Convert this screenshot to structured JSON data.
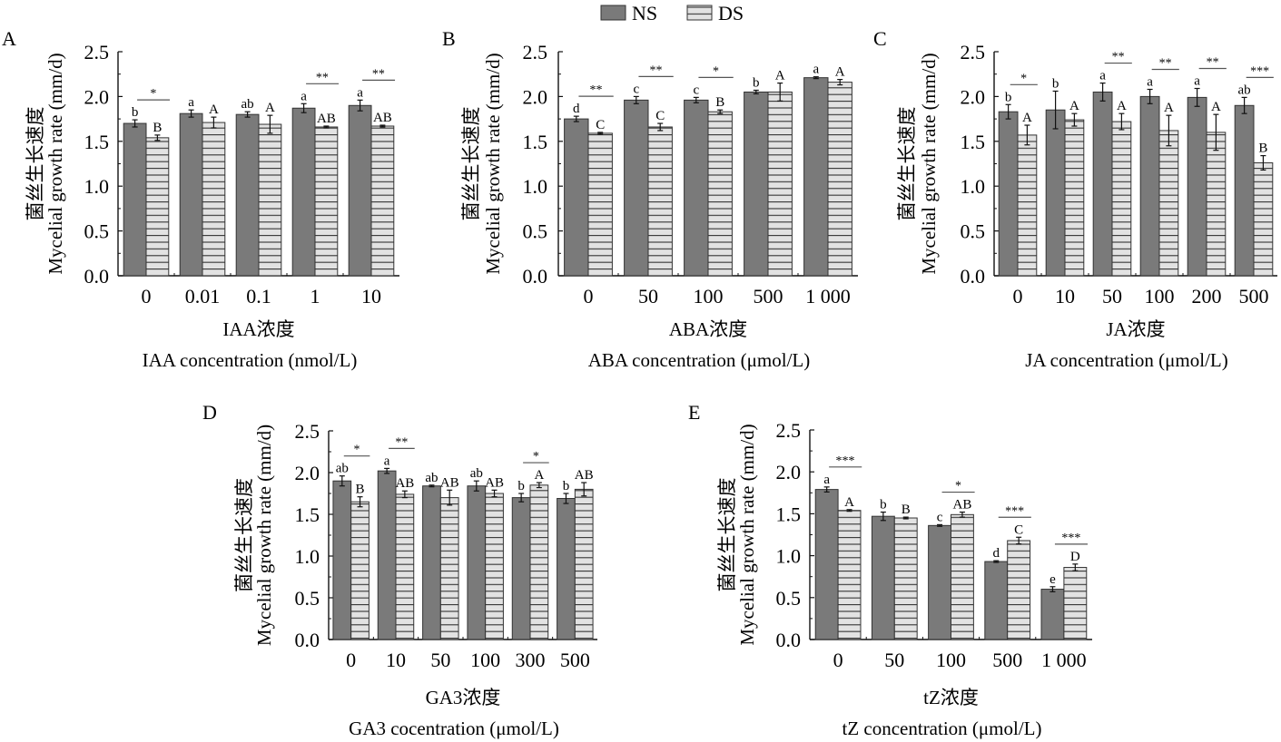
{
  "legend": {
    "items": [
      {
        "label": "NS",
        "style": "solid",
        "color": "#7a7a7a"
      },
      {
        "label": "DS",
        "style": "hatched",
        "color": "#e2e2e2"
      }
    ]
  },
  "colors": {
    "ns_fill": "#7a7a7a",
    "ds_fill": "#e2e2e2",
    "hatch_line": "#333333",
    "axis": "#111111"
  },
  "chart_data": [
    {
      "id": "A",
      "type": "bar",
      "panel_label": "A",
      "ylabel_cn": "菌丝生长速度",
      "ylabel_en": "Mycelial growth rate (mm/d)",
      "xlabel_cn": "IAA浓度",
      "xlabel_en": "IAA concentration (nmol/L)",
      "ylim": [
        0,
        2.5
      ],
      "yticks": [
        "0.0",
        "0.5",
        "1.0",
        "1.5",
        "2.0",
        "2.5"
      ],
      "categories": [
        "0",
        "0.01",
        "0.1",
        "1",
        "10"
      ],
      "series": [
        {
          "name": "NS",
          "values": [
            1.7,
            1.81,
            1.8,
            1.87,
            1.9
          ],
          "errors": [
            0.04,
            0.04,
            0.03,
            0.05,
            0.06
          ],
          "letters": [
            "b",
            "a",
            "ab",
            "a",
            "a"
          ]
        },
        {
          "name": "DS",
          "values": [
            1.54,
            1.71,
            1.69,
            1.66,
            1.67
          ],
          "errors": [
            0.03,
            0.06,
            0.1,
            0.01,
            0.01
          ],
          "letters": [
            "B",
            "A",
            "A",
            "AB",
            "AB"
          ]
        }
      ],
      "significance": [
        "*",
        "",
        "",
        "**",
        "**"
      ]
    },
    {
      "id": "B",
      "type": "bar",
      "panel_label": "B",
      "ylabel_cn": "菌丝生长速度",
      "ylabel_en": "Mycelial growth rate (mm/d)",
      "xlabel_cn": "ABA浓度",
      "xlabel_en": "ABA concentration (μmol/L)",
      "ylim": [
        0,
        2.5
      ],
      "yticks": [
        "0.0",
        "0.5",
        "1.0",
        "1.5",
        "2.0",
        "2.5"
      ],
      "categories": [
        "0",
        "50",
        "100",
        "500",
        "1 000"
      ],
      "series": [
        {
          "name": "NS",
          "values": [
            1.75,
            1.96,
            1.96,
            2.05,
            2.21
          ],
          "errors": [
            0.03,
            0.04,
            0.03,
            0.02,
            0.01
          ],
          "letters": [
            "d",
            "c",
            "c",
            "b",
            "a"
          ]
        },
        {
          "name": "DS",
          "values": [
            1.59,
            1.66,
            1.83,
            2.05,
            2.16
          ],
          "errors": [
            0.01,
            0.04,
            0.02,
            0.1,
            0.03
          ],
          "letters": [
            "C",
            "C",
            "B",
            "A",
            "A"
          ]
        }
      ],
      "significance": [
        "**",
        "**",
        "*",
        "",
        ""
      ]
    },
    {
      "id": "C",
      "type": "bar",
      "panel_label": "C",
      "ylabel_cn": "菌丝生长速度",
      "ylabel_en": "Mycelial growth rate (mm/d)",
      "xlabel_cn": "JA浓度",
      "xlabel_en": "JA concentration (μmol/L)",
      "ylim": [
        0,
        2.5
      ],
      "yticks": [
        "0.0",
        "0.5",
        "1.0",
        "1.5",
        "2.0",
        "2.5"
      ],
      "categories": [
        "0",
        "10",
        "50",
        "100",
        "200",
        "500"
      ],
      "series": [
        {
          "name": "NS",
          "values": [
            1.83,
            1.85,
            2.05,
            2.0,
            1.99,
            1.9
          ],
          "errors": [
            0.08,
            0.21,
            0.1,
            0.08,
            0.1,
            0.09
          ],
          "letters": [
            "b",
            "b",
            "a",
            "a",
            "a",
            "ab"
          ]
        },
        {
          "name": "DS",
          "values": [
            1.57,
            1.74,
            1.72,
            1.62,
            1.6,
            1.26
          ],
          "errors": [
            0.11,
            0.07,
            0.09,
            0.17,
            0.2,
            0.08
          ],
          "letters": [
            "A",
            "A",
            "A",
            "A",
            "A",
            "B"
          ]
        }
      ],
      "significance": [
        "*",
        "",
        "**",
        "**",
        "**",
        "***"
      ]
    },
    {
      "id": "D",
      "type": "bar",
      "panel_label": "D",
      "ylabel_cn": "菌丝生长速度",
      "ylabel_en": "Mycelial growth rate (mm/d)",
      "xlabel_cn": "GA3浓度",
      "xlabel_en": "GA3 cocentration (μmol/L)",
      "ylim": [
        0,
        2.5
      ],
      "yticks": [
        "0.0",
        "0.5",
        "1.0",
        "1.5",
        "2.0",
        "2.5"
      ],
      "categories": [
        "0",
        "10",
        "50",
        "100",
        "300",
        "500"
      ],
      "series": [
        {
          "name": "NS",
          "values": [
            1.9,
            2.02,
            1.84,
            1.84,
            1.7,
            1.69
          ],
          "errors": [
            0.06,
            0.03,
            0.01,
            0.06,
            0.05,
            0.06
          ],
          "letters": [
            "ab",
            "a",
            "ab",
            "ab",
            "b",
            "b"
          ]
        },
        {
          "name": "DS",
          "values": [
            1.65,
            1.74,
            1.7,
            1.75,
            1.85,
            1.8
          ],
          "errors": [
            0.06,
            0.04,
            0.09,
            0.04,
            0.03,
            0.08
          ],
          "letters": [
            "B",
            "AB",
            "AB",
            "AB",
            "A",
            "AB"
          ]
        }
      ],
      "significance": [
        "*",
        "**",
        "",
        "",
        "*",
        ""
      ]
    },
    {
      "id": "E",
      "type": "bar",
      "panel_label": "E",
      "ylabel_cn": "菌丝生长速度",
      "ylabel_en": "Mycelial growth rate (mm/d)",
      "xlabel_cn": "tZ浓度",
      "xlabel_en": "tZ concentration (μmol/L)",
      "ylim": [
        0,
        2.5
      ],
      "yticks": [
        "0.0",
        "0.5",
        "1.0",
        "1.5",
        "2.0",
        "2.5"
      ],
      "categories": [
        "0",
        "50",
        "100",
        "500",
        "1 000"
      ],
      "series": [
        {
          "name": "NS",
          "values": [
            1.79,
            1.47,
            1.36,
            0.93,
            0.6
          ],
          "errors": [
            0.03,
            0.05,
            0.01,
            0.01,
            0.03
          ],
          "letters": [
            "a",
            "b",
            "c",
            "d",
            "e"
          ]
        },
        {
          "name": "DS",
          "values": [
            1.54,
            1.45,
            1.49,
            1.18,
            0.86
          ],
          "errors": [
            0.01,
            0.01,
            0.03,
            0.04,
            0.04
          ],
          "letters": [
            "A",
            "B",
            "AB",
            "C",
            "D"
          ]
        }
      ],
      "significance": [
        "***",
        "",
        "*",
        "***",
        "***"
      ]
    }
  ]
}
